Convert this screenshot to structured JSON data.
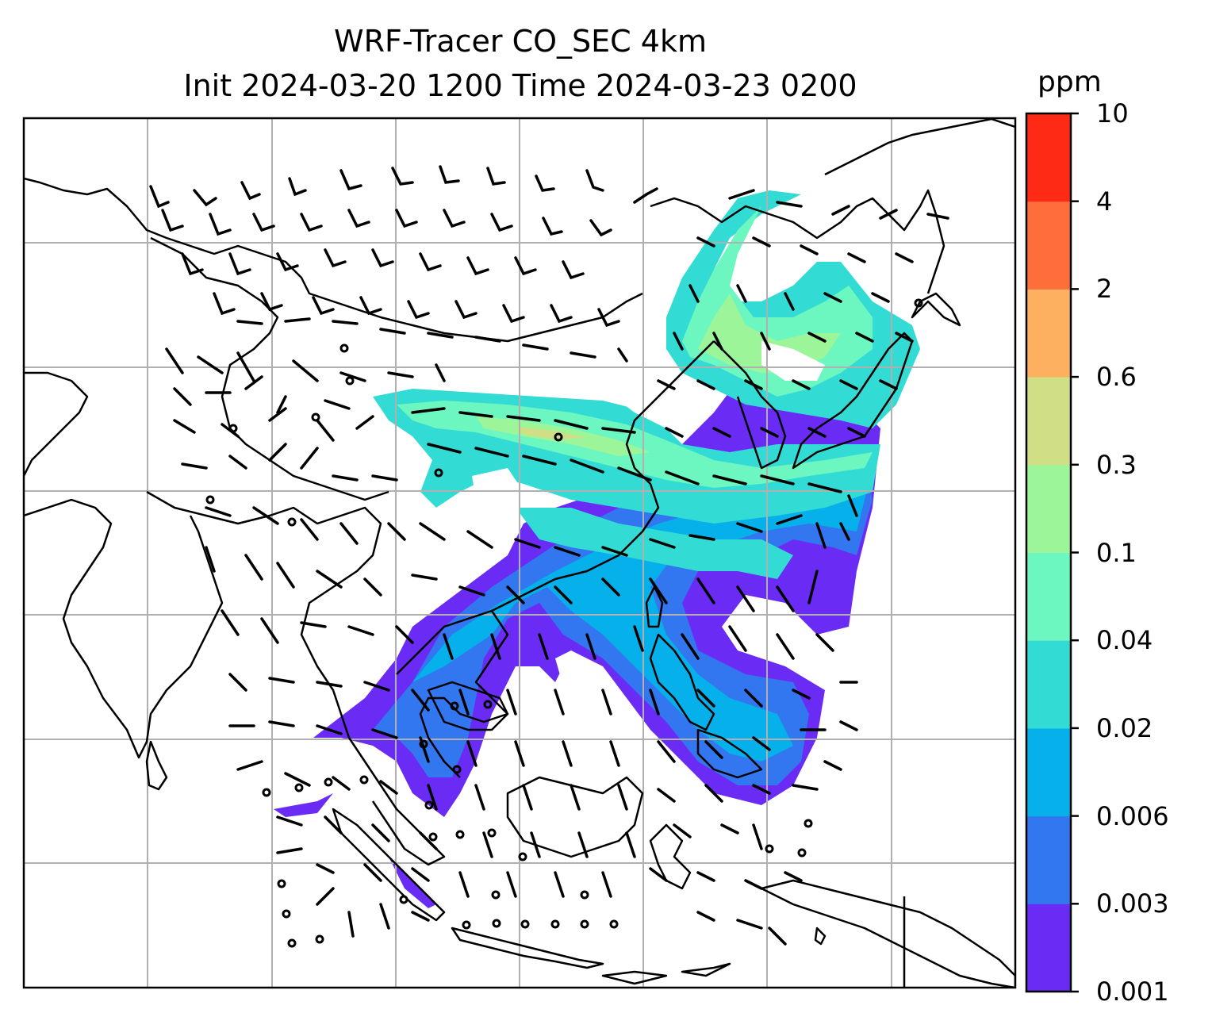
{
  "title": {
    "line1": "WRF-Tracer CO_SEC 4km",
    "line2": "Init 2024-03-20 1200 Time 2024-03-23 0200"
  },
  "colorbar": {
    "unit": "ppm",
    "ticks": [
      "0.001",
      "0.003",
      "0.006",
      "0.02",
      "0.04",
      "0.1",
      "0.3",
      "0.6",
      "2",
      "4",
      "10"
    ],
    "colors": [
      "#6a2cf5",
      "#3276f0",
      "#06b0ea",
      "#32dcd4",
      "#6cf6c0",
      "#9df59a",
      "#d0df86",
      "#fdb060",
      "#fe6e3a",
      "#fe2a16"
    ]
  },
  "map": {
    "gridlines": true,
    "wind_barbs": true,
    "coastlines": true
  }
}
